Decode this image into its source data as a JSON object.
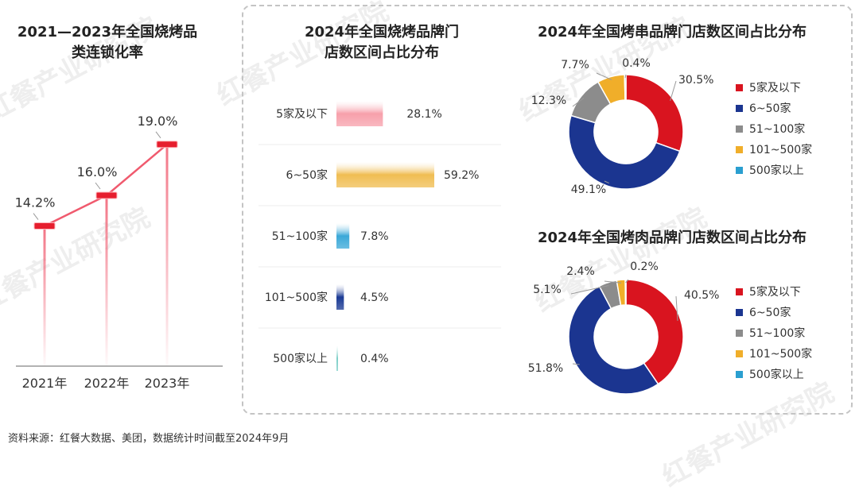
{
  "watermark": "红餐产业研究院",
  "source": "资料来源：红餐大数据、美团，数据统计时间截至2024年9月",
  "chart_data": [
    {
      "type": "line",
      "title": "2021—2023年全国烧烤品类连锁化率",
      "categories": [
        "2021年",
        "2022年",
        "2023年"
      ],
      "values": [
        14.2,
        16.0,
        19.0
      ],
      "labels": [
        "14.2%",
        "16.0%",
        "19.0%"
      ],
      "color": "#f05a6e"
    },
    {
      "type": "bar",
      "orientation": "horizontal",
      "title": "2024年全国烧烤品牌门店数区间占比分布",
      "categories": [
        "5家及以下",
        "6~50家",
        "51~100家",
        "101~500家",
        "500家以上"
      ],
      "values": [
        28.1,
        59.2,
        7.8,
        4.5,
        0.4
      ],
      "labels": [
        "28.1%",
        "59.2%",
        "7.8%",
        "4.5%",
        "0.4%"
      ],
      "colors": [
        "#f7a0ab",
        "#f0bd52",
        "#3aa8d8",
        "#1a3a94",
        "#7ecfc8"
      ]
    },
    {
      "type": "pie",
      "donut": true,
      "title": "2024年全国烤串品牌门店数区间占比分布",
      "categories": [
        "5家及以下",
        "6~50家",
        "51~100家",
        "101~500家",
        "500家以上"
      ],
      "values": [
        30.5,
        49.1,
        12.3,
        7.7,
        0.4
      ],
      "labels": [
        "30.5%",
        "49.1%",
        "12.3%",
        "7.7%",
        "0.4%"
      ],
      "colors": [
        "#d9141f",
        "#1b3590",
        "#8c8c8c",
        "#f0ae2a",
        "#2a9fd0"
      ],
      "legend": "right"
    },
    {
      "type": "pie",
      "donut": true,
      "title": "2024年全国烤肉品牌门店数区间占比分布",
      "categories": [
        "5家及以下",
        "6~50家",
        "51~100家",
        "101~500家",
        "500家以上"
      ],
      "values": [
        40.5,
        51.8,
        5.1,
        2.4,
        0.2
      ],
      "labels": [
        "40.5%",
        "51.8%",
        "5.1%",
        "2.4%",
        "0.2%"
      ],
      "colors": [
        "#d9141f",
        "#1b3590",
        "#8c8c8c",
        "#f0ae2a",
        "#2a9fd0"
      ],
      "legend": "right"
    }
  ]
}
